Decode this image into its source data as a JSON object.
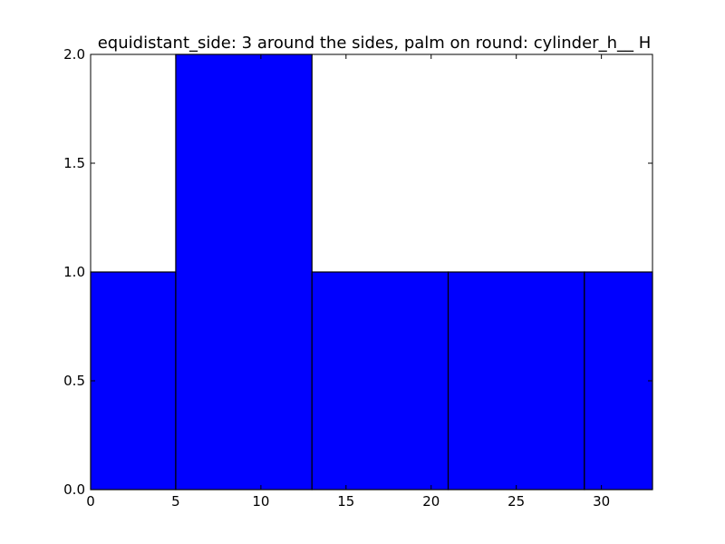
{
  "chart_data": {
    "type": "bar",
    "title": "equidistant_side: 3 around the sides, palm on round: cylinder_h__ H",
    "xlabel": "",
    "ylabel": "",
    "xlim": [
      0,
      33
    ],
    "ylim": [
      0,
      2
    ],
    "xticks": [
      0,
      5,
      10,
      15,
      20,
      25,
      30
    ],
    "yticks": [
      0,
      0.5,
      1,
      1.5,
      2
    ],
    "xtick_labels": [
      "0",
      "5",
      "10",
      "15",
      "20",
      "25",
      "30"
    ],
    "ytick_labels": [
      "0.0",
      "0.5",
      "1.0",
      "1.5",
      "2.0"
    ],
    "bins": [
      {
        "start": 0,
        "end": 5,
        "value": 1
      },
      {
        "start": 5,
        "end": 13,
        "value": 2
      },
      {
        "start": 13,
        "end": 21,
        "value": 1
      },
      {
        "start": 21,
        "end": 29,
        "value": 1
      },
      {
        "start": 29,
        "end": 33,
        "value": 1
      }
    ],
    "grid": false,
    "colors": {
      "bar_fill": "#0000ff",
      "bar_edge": "#000000",
      "axes": "#000000",
      "background": "#ffffff"
    }
  }
}
